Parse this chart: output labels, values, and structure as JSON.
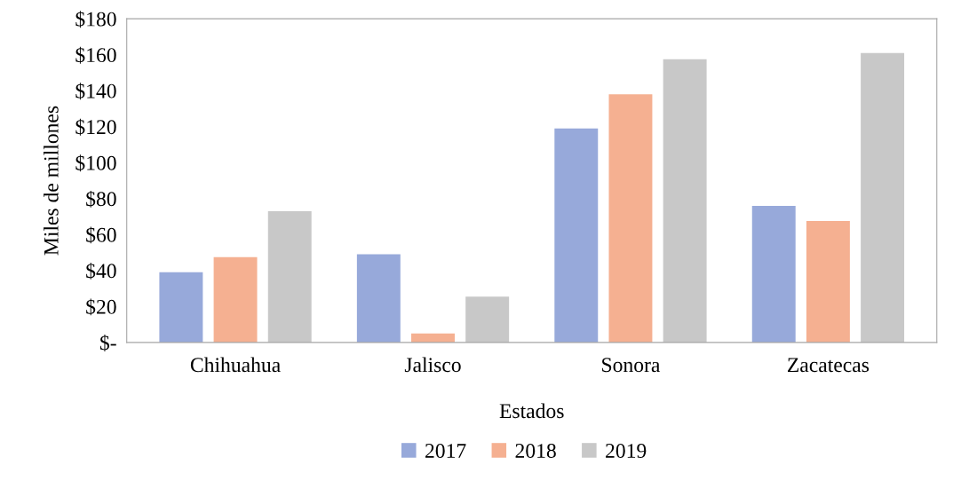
{
  "chart_data": {
    "type": "bar",
    "xlabel": "Estados",
    "ylabel": "Miles de millones",
    "categories": [
      "Chihuahua",
      "Jalisco",
      "Sonora",
      "Zacatecas"
    ],
    "series": [
      {
        "name": "2017",
        "color": "#97a9da",
        "values": [
          39,
          49,
          119,
          76
        ]
      },
      {
        "name": "2018",
        "color": "#f5b091",
        "values": [
          47.5,
          5,
          138,
          67.5
        ]
      },
      {
        "name": "2019",
        "color": "#c8c8c8",
        "values": [
          73,
          25.5,
          157.5,
          161
        ]
      }
    ],
    "ylim": [
      0,
      180
    ],
    "yticks": [
      {
        "value": 0,
        "label": "$-"
      },
      {
        "value": 20,
        "label": "$20"
      },
      {
        "value": 40,
        "label": "$40"
      },
      {
        "value": 60,
        "label": "$60"
      },
      {
        "value": 80,
        "label": "$80"
      },
      {
        "value": 100,
        "label": "$100"
      },
      {
        "value": 120,
        "label": "$120"
      },
      {
        "value": 140,
        "label": "$140"
      },
      {
        "value": 160,
        "label": "$160"
      },
      {
        "value": 180,
        "label": "$180"
      }
    ],
    "grid": false,
    "legend": "bottom"
  }
}
